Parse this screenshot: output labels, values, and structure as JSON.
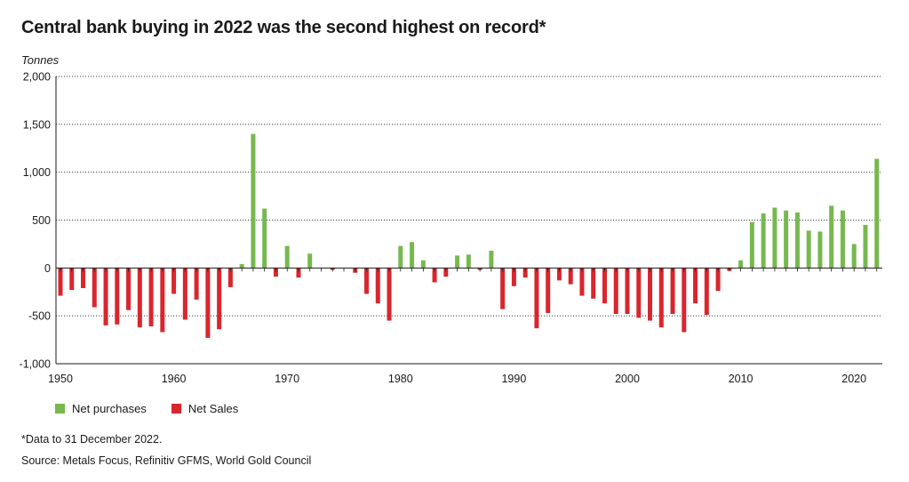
{
  "title": "Central bank buying in 2022 was the second highest on record*",
  "units_label": "Tonnes",
  "legend": {
    "positive_label": "Net purchases",
    "negative_label": "Net Sales"
  },
  "colors": {
    "positive": "#77b84f",
    "negative": "#d9262e",
    "grid": "#333333",
    "axis": "#1a1a1a"
  },
  "footnote": "*Data to 31 December 2022.",
  "source": "Source: Metals Focus, Refinitiv GFMS, World Gold Council",
  "chart_data": {
    "type": "bar",
    "xlabel": "",
    "ylabel": "Tonnes",
    "ylim": [
      -1000,
      2000
    ],
    "yticks": [
      -1000,
      -500,
      0,
      500,
      1000,
      1500,
      2000
    ],
    "ytick_labels": [
      "-1,000",
      "-500",
      "0",
      "500",
      "1,000",
      "1,500",
      "2,000"
    ],
    "xticks": [
      1950,
      1960,
      1970,
      1980,
      1990,
      2000,
      2010,
      2020
    ],
    "xtick_labels": [
      "1950",
      "1960",
      "1970",
      "1980",
      "1990",
      "2000",
      "2010",
      "2020"
    ],
    "grid": "horizontal dotted",
    "legend_position": "bottom-left",
    "x": [
      1950,
      1951,
      1952,
      1953,
      1954,
      1955,
      1956,
      1957,
      1958,
      1959,
      1960,
      1961,
      1962,
      1963,
      1964,
      1965,
      1966,
      1967,
      1968,
      1969,
      1970,
      1971,
      1972,
      1973,
      1974,
      1975,
      1976,
      1977,
      1978,
      1979,
      1980,
      1981,
      1982,
      1983,
      1984,
      1985,
      1986,
      1987,
      1988,
      1989,
      1990,
      1991,
      1992,
      1993,
      1994,
      1995,
      1996,
      1997,
      1998,
      1999,
      2000,
      2001,
      2002,
      2003,
      2004,
      2005,
      2006,
      2007,
      2008,
      2009,
      2010,
      2011,
      2012,
      2013,
      2014,
      2015,
      2016,
      2017,
      2018,
      2019,
      2020,
      2021,
      2022
    ],
    "values": [
      -290,
      -230,
      -210,
      -410,
      -600,
      -590,
      -440,
      -620,
      -610,
      -670,
      -270,
      -540,
      -330,
      -730,
      -640,
      -200,
      40,
      1400,
      620,
      -90,
      230,
      -100,
      150,
      0,
      -20,
      0,
      -50,
      -270,
      -370,
      -550,
      230,
      270,
      80,
      -150,
      -90,
      130,
      140,
      -20,
      180,
      -430,
      -190,
      -100,
      -630,
      -470,
      -130,
      -170,
      -290,
      -320,
      -370,
      -480,
      -480,
      -520,
      -550,
      -620,
      -480,
      -670,
      -370,
      -490,
      -240,
      -30,
      80,
      480,
      570,
      630,
      600,
      580,
      390,
      380,
      650,
      600,
      250,
      450,
      1140
    ]
  }
}
